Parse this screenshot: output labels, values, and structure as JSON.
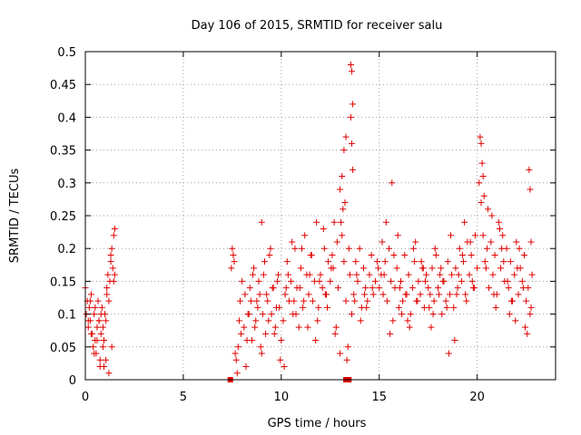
{
  "chart_data": {
    "type": "scatter",
    "title": "Day 106 of 2015, SRMTID for receiver salu",
    "xlabel": "GPS time / hours",
    "ylabel": "SRMTID / TECUs",
    "xlim": [
      0,
      24
    ],
    "ylim": [
      0,
      0.5
    ],
    "x_ticks": [
      0,
      5,
      10,
      15,
      20
    ],
    "y_ticks": [
      0,
      0.05,
      0.1,
      0.15,
      0.2,
      0.25,
      0.3,
      0.35,
      0.4,
      0.45,
      0.5
    ],
    "x_tick_labels": [
      "0",
      "5",
      "10",
      "15",
      "20"
    ],
    "y_tick_labels": [
      "0",
      "0.05",
      "0.1",
      "0.15",
      "0.2",
      "0.25",
      "0.3",
      "0.35",
      "0.4",
      "0.45",
      "0.5"
    ],
    "grid": true,
    "marker": "plus",
    "color": "#e00000",
    "series": [
      {
        "name": "SRMTID",
        "x": [
          0.0,
          0.05,
          0.1,
          0.15,
          0.2,
          0.25,
          0.3,
          0.35,
          0.4,
          0.45,
          0.5,
          0.55,
          0.6,
          0.65,
          0.7,
          0.75,
          0.8,
          0.85,
          0.9,
          0.95,
          1.0,
          1.05,
          1.1,
          1.15,
          1.2,
          1.25,
          1.3,
          1.35,
          1.4,
          1.45,
          1.5,
          0.15,
          0.3,
          0.45,
          0.6,
          0.75,
          0.9,
          1.05,
          1.2,
          1.35,
          0.25,
          0.5,
          0.8,
          1.1,
          1.3,
          1.5,
          1.45,
          0.7,
          0.95,
          7.5,
          7.6,
          7.7,
          7.8,
          7.9,
          8.0,
          8.1,
          8.2,
          8.3,
          8.4,
          8.5,
          8.6,
          8.7,
          8.8,
          8.9,
          9.0,
          9.1,
          9.2,
          9.3,
          9.4,
          9.5,
          9.6,
          9.7,
          9.8,
          9.9,
          10.0,
          7.55,
          7.75,
          7.95,
          8.15,
          8.35,
          8.55,
          8.75,
          8.95,
          9.15,
          9.35,
          9.55,
          9.75,
          9.95,
          7.45,
          7.65,
          7.85,
          8.25,
          8.45,
          8.65,
          8.85,
          9.05,
          9.25,
          9.45,
          9.65,
          9.85,
          9.0,
          10.1,
          10.2,
          10.3,
          10.4,
          10.5,
          10.6,
          10.7,
          10.8,
          10.9,
          11.0,
          11.1,
          11.2,
          11.3,
          11.4,
          11.5,
          11.6,
          11.7,
          11.8,
          11.9,
          12.0,
          12.1,
          12.2,
          12.3,
          12.4,
          12.5,
          10.15,
          10.35,
          10.55,
          10.75,
          10.95,
          11.15,
          11.35,
          11.55,
          11.75,
          11.95,
          12.15,
          12.35,
          12.55,
          10.25,
          10.65,
          11.05,
          11.45,
          11.85,
          12.25,
          12.6,
          12.7,
          12.8,
          12.9,
          13.0,
          13.1,
          13.2,
          13.3,
          13.4,
          13.5,
          13.6,
          13.7,
          13.8,
          13.9,
          14.0,
          14.1,
          14.2,
          14.3,
          14.4,
          14.5,
          14.6,
          14.7,
          14.8,
          14.9,
          15.0,
          13.55,
          13.6,
          13.65,
          13.55,
          13.6,
          13.65,
          13.0,
          13.1,
          13.2,
          13.3,
          13.25,
          13.15,
          12.65,
          12.85,
          13.05,
          13.45,
          13.75,
          14.05,
          14.35,
          14.65,
          14.95,
          12.75,
          13.35,
          13.85,
          14.25,
          15.1,
          15.2,
          15.3,
          15.4,
          15.5,
          15.6,
          15.7,
          15.8,
          15.9,
          16.0,
          16.1,
          16.2,
          16.3,
          16.4,
          16.5,
          16.6,
          16.7,
          16.8,
          16.9,
          17.0,
          17.1,
          17.2,
          17.3,
          17.4,
          17.5,
          15.15,
          15.35,
          15.55,
          15.75,
          15.95,
          16.15,
          16.35,
          16.55,
          16.75,
          16.95,
          17.15,
          17.35,
          17.55,
          15.25,
          15.65,
          16.05,
          16.45,
          16.85,
          17.25,
          17.6,
          17.7,
          17.8,
          17.9,
          18.0,
          18.1,
          18.2,
          18.3,
          18.4,
          18.5,
          18.6,
          18.7,
          18.8,
          18.9,
          19.0,
          19.1,
          19.2,
          19.3,
          19.4,
          19.5,
          19.6,
          19.7,
          19.8,
          19.9,
          20.0,
          17.65,
          17.85,
          18.05,
          18.25,
          18.45,
          18.65,
          18.85,
          19.05,
          19.25,
          19.45,
          19.65,
          19.85,
          17.75,
          18.15,
          18.55,
          18.95,
          19.35,
          19.75,
          20.1,
          20.2,
          20.3,
          20.4,
          20.5,
          20.6,
          20.7,
          20.8,
          20.9,
          21.0,
          21.1,
          21.2,
          21.3,
          21.4,
          21.5,
          21.6,
          21.7,
          21.8,
          21.9,
          22.0,
          22.1,
          22.2,
          22.3,
          22.4,
          22.5,
          22.6,
          22.7,
          22.8,
          20.15,
          20.2,
          20.25,
          20.3,
          20.35,
          20.55,
          20.75,
          20.95,
          21.15,
          21.35,
          21.55,
          21.75,
          21.95,
          22.15,
          22.35,
          22.55,
          22.75,
          22.65,
          22.7,
          22.75,
          20.45,
          20.85,
          21.25,
          21.65,
          22.05,
          22.45
        ],
        "y": [
          0.14,
          0.1,
          0.12,
          0.08,
          0.11,
          0.09,
          0.13,
          0.07,
          0.05,
          0.1,
          0.06,
          0.04,
          0.08,
          0.12,
          0.09,
          0.03,
          0.07,
          0.11,
          0.05,
          0.02,
          0.1,
          0.09,
          0.13,
          0.16,
          0.12,
          0.15,
          0.18,
          0.2,
          0.17,
          0.22,
          0.23,
          0.09,
          0.07,
          0.04,
          0.06,
          0.02,
          0.08,
          0.03,
          0.01,
          0.05,
          0.12,
          0.11,
          0.1,
          0.14,
          0.19,
          0.16,
          0.15,
          0.09,
          0.06,
          0.2,
          0.18,
          0.03,
          0.05,
          0.12,
          0.15,
          0.08,
          0.02,
          0.1,
          0.14,
          0.06,
          0.17,
          0.09,
          0.11,
          0.13,
          0.04,
          0.16,
          0.07,
          0.12,
          0.19,
          0.1,
          0.14,
          0.08,
          0.15,
          0.11,
          0.06,
          0.19,
          0.01,
          0.07,
          0.13,
          0.1,
          0.16,
          0.12,
          0.05,
          0.18,
          0.09,
          0.14,
          0.11,
          0.03,
          0.17,
          0.04,
          0.09,
          0.06,
          0.12,
          0.08,
          0.15,
          0.1,
          0.13,
          0.2,
          0.07,
          0.16,
          0.24,
          0.09,
          0.13,
          0.18,
          0.12,
          0.15,
          0.1,
          0.2,
          0.14,
          0.08,
          0.17,
          0.11,
          0.22,
          0.16,
          0.13,
          0.19,
          0.12,
          0.15,
          0.24,
          0.11,
          0.16,
          0.14,
          0.2,
          0.13,
          0.18,
          0.15,
          0.02,
          0.16,
          0.21,
          0.1,
          0.14,
          0.12,
          0.08,
          0.19,
          0.06,
          0.15,
          0.23,
          0.11,
          0.17,
          0.14,
          0.12,
          0.2,
          0.16,
          0.09,
          0.13,
          0.19,
          0.24,
          0.08,
          0.14,
          0.04,
          0.22,
          0.18,
          0.12,
          0.05,
          0.16,
          0.1,
          0.13,
          0.18,
          0.15,
          0.2,
          0.11,
          0.17,
          0.14,
          0.12,
          0.16,
          0.19,
          0.13,
          0.15,
          0.18,
          0.14,
          0.48,
          0.47,
          0.42,
          0.4,
          0.36,
          0.32,
          0.29,
          0.31,
          0.35,
          0.37,
          0.27,
          0.26,
          0.17,
          0.21,
          0.24,
          0.2,
          0.12,
          0.09,
          0.11,
          0.14,
          0.17,
          0.07,
          0.03,
          0.16,
          0.13,
          0.16,
          0.13,
          0.18,
          0.12,
          0.2,
          0.15,
          0.09,
          0.14,
          0.17,
          0.11,
          0.15,
          0.12,
          0.19,
          0.13,
          0.16,
          0.1,
          0.14,
          0.18,
          0.12,
          0.15,
          0.13,
          0.17,
          0.11,
          0.16,
          0.14,
          0.21,
          0.24,
          0.07,
          0.19,
          0.22,
          0.1,
          0.13,
          0.08,
          0.2,
          0.12,
          0.18,
          0.15,
          0.11,
          0.16,
          0.3,
          0.14,
          0.09,
          0.21,
          0.17,
          0.13,
          0.17,
          0.12,
          0.19,
          0.14,
          0.16,
          0.1,
          0.15,
          0.12,
          0.18,
          0.13,
          0.16,
          0.11,
          0.17,
          0.14,
          0.2,
          0.15,
          0.18,
          0.13,
          0.21,
          0.16,
          0.19,
          0.14,
          0.22,
          0.17,
          0.08,
          0.2,
          0.13,
          0.15,
          0.11,
          0.22,
          0.06,
          0.16,
          0.19,
          0.12,
          0.21,
          0.14,
          0.1,
          0.17,
          0.04,
          0.13,
          0.24,
          0.15,
          0.3,
          0.27,
          0.22,
          0.18,
          0.2,
          0.14,
          0.21,
          0.16,
          0.19,
          0.13,
          0.24,
          0.17,
          0.22,
          0.15,
          0.2,
          0.14,
          0.18,
          0.12,
          0.16,
          0.21,
          0.13,
          0.17,
          0.15,
          0.19,
          0.12,
          0.14,
          0.1,
          0.16,
          0.37,
          0.36,
          0.33,
          0.31,
          0.28,
          0.26,
          0.25,
          0.11,
          0.23,
          0.18,
          0.15,
          0.12,
          0.09,
          0.2,
          0.14,
          0.07,
          0.11,
          0.32,
          0.29,
          0.21,
          0.17,
          0.13,
          0.2,
          0.1,
          0.17,
          0.08
        ]
      }
    ],
    "markers_on_axis": [
      7.4,
      13.3,
      13.35,
      13.45
    ]
  }
}
